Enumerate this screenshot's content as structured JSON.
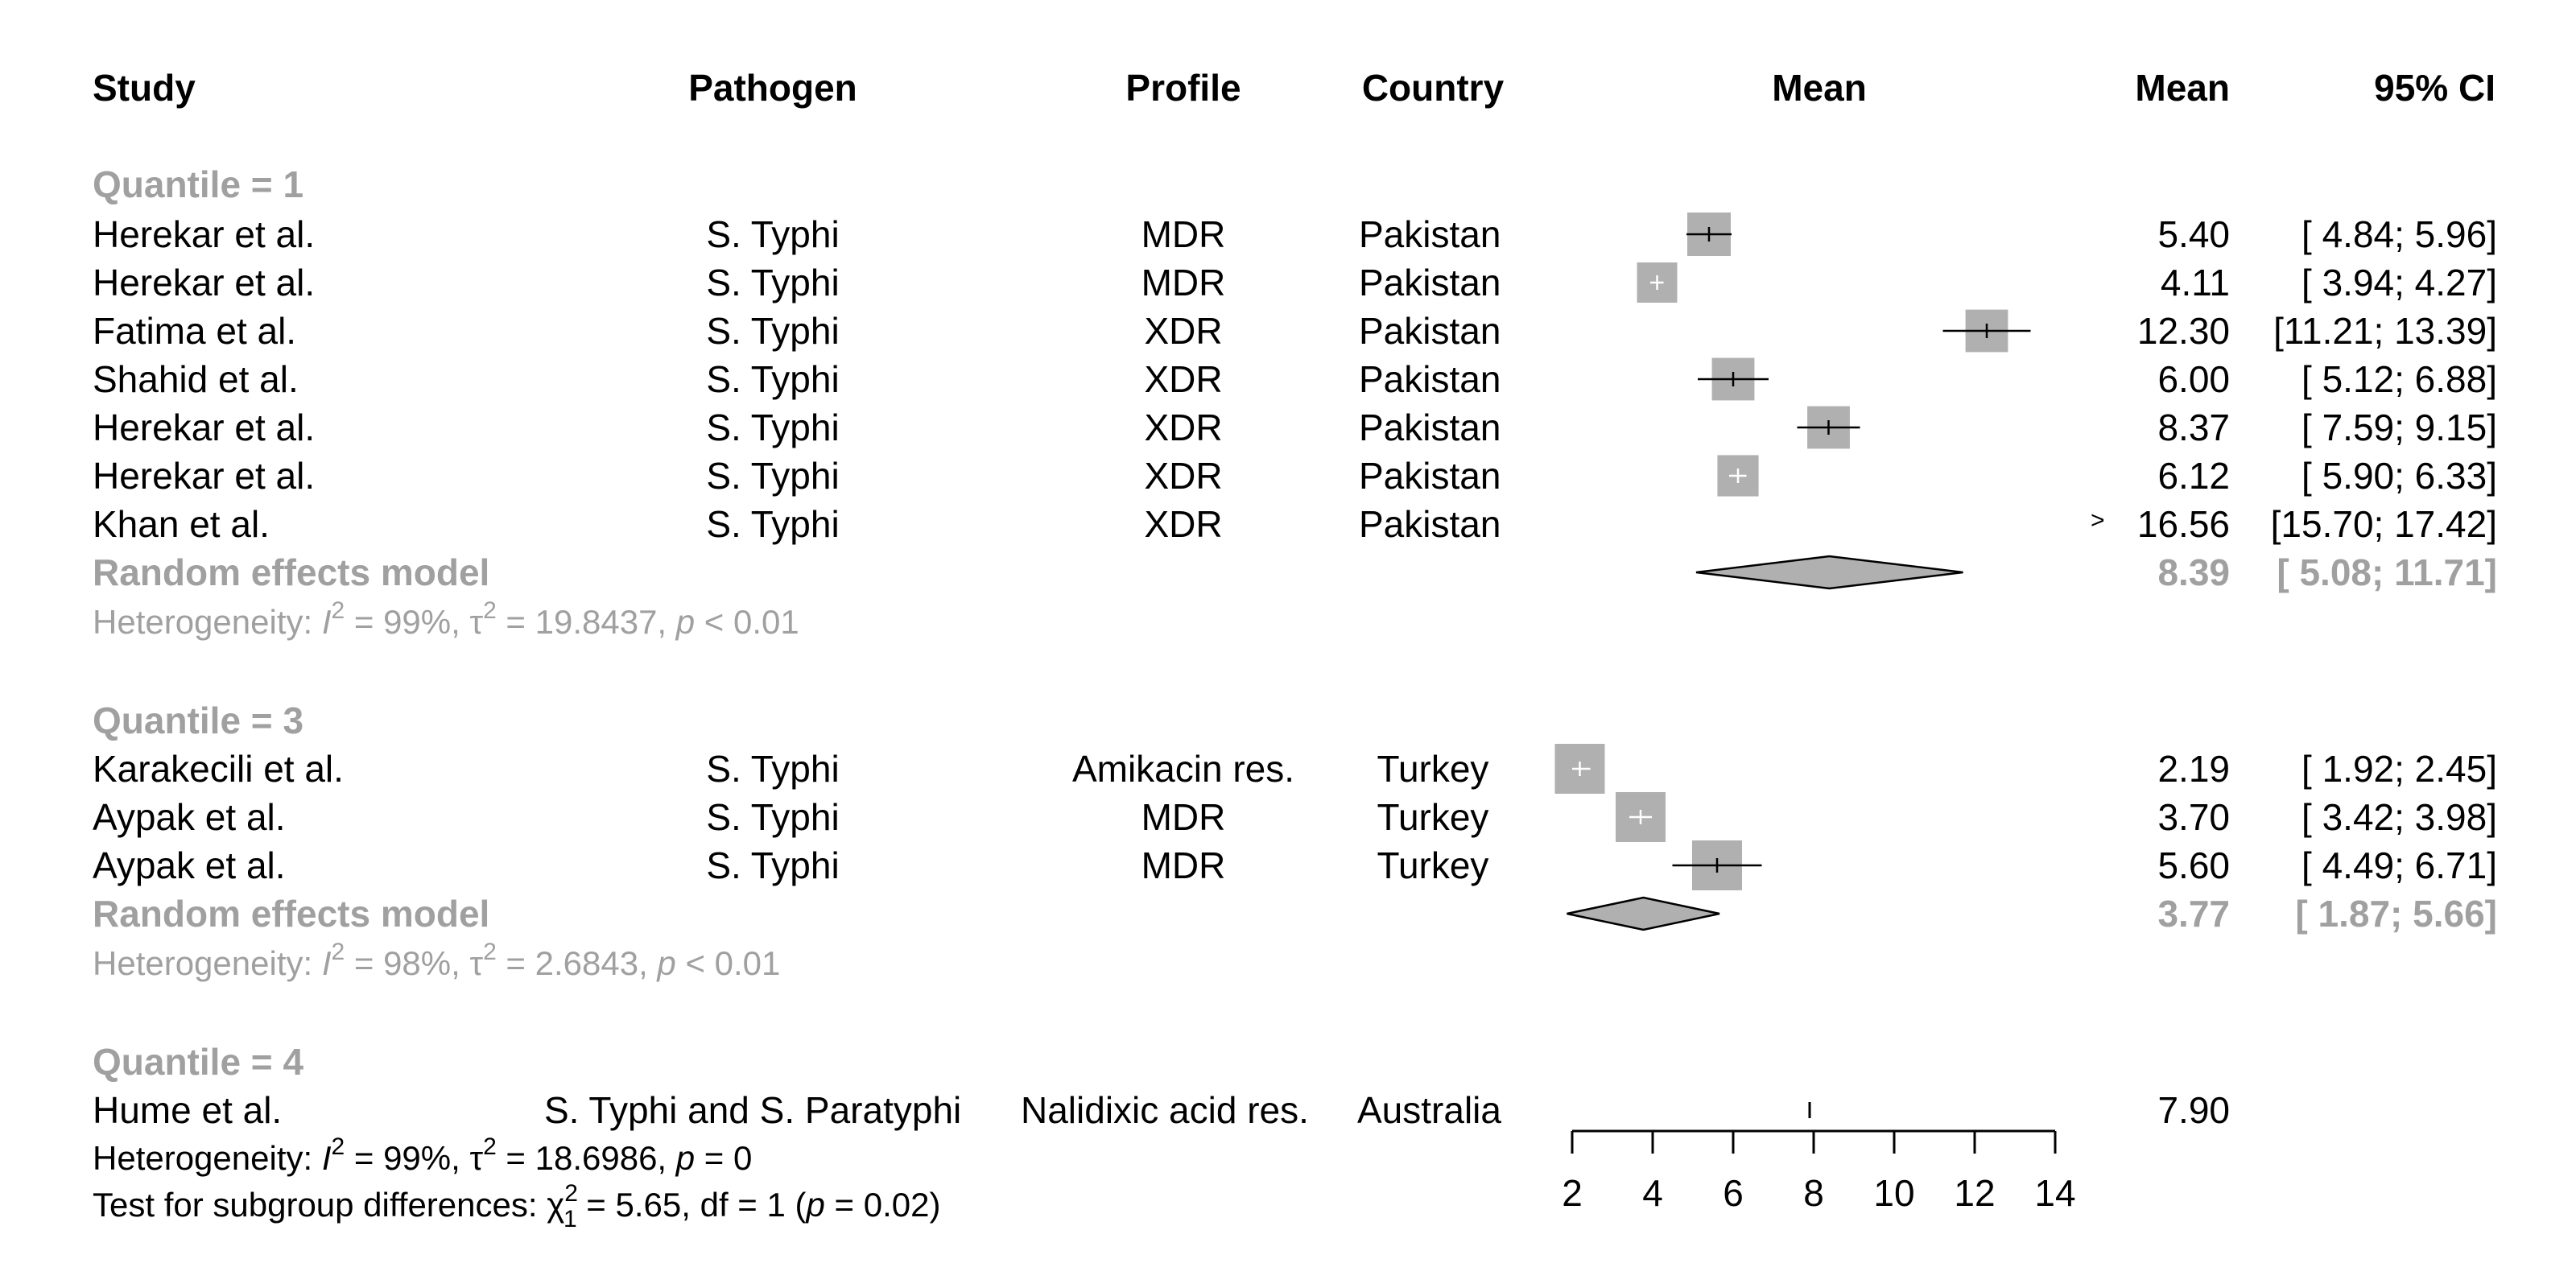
{
  "headers": {
    "study": "Study",
    "pathogen": "Pathogen",
    "profile": "Profile",
    "country": "Country",
    "plot": "Mean",
    "mean": "Mean",
    "ci": "95% CI"
  },
  "groups": [
    {
      "label": "Quantile = 1",
      "rows": [
        {
          "study": "Herekar et al.",
          "pathogen": "S. Typhi",
          "profile": "MDR",
          "country": "Pakistan",
          "mean_text": "5.40",
          "ci_text": "[ 4.84;  5.96]"
        },
        {
          "study": "Herekar et al.",
          "pathogen": "S. Typhi",
          "profile": "MDR",
          "country": "Pakistan",
          "mean_text": "4.11",
          "ci_text": "[ 3.94;  4.27]"
        },
        {
          "study": "Fatima et al.",
          "pathogen": "S. Typhi",
          "profile": "XDR",
          "country": "Pakistan",
          "mean_text": "12.30",
          "ci_text": "[11.21; 13.39]"
        },
        {
          "study": "Shahid et al.",
          "pathogen": "S. Typhi",
          "profile": "XDR",
          "country": "Pakistan",
          "mean_text": "6.00",
          "ci_text": "[ 5.12;  6.88]"
        },
        {
          "study": "Herekar et al.",
          "pathogen": "S. Typhi",
          "profile": "XDR",
          "country": "Pakistan",
          "mean_text": "8.37",
          "ci_text": "[ 7.59;  9.15]"
        },
        {
          "study": "Herekar et al.",
          "pathogen": "S. Typhi",
          "profile": "XDR",
          "country": "Pakistan",
          "mean_text": "6.12",
          "ci_text": "[ 5.90;  6.33]"
        },
        {
          "study": "Khan et al.",
          "pathogen": "S. Typhi",
          "profile": "XDR",
          "country": "Pakistan",
          "mean_text": "16.56",
          "ci_text": "[15.70; 17.42]"
        }
      ],
      "model_label": "Random effects model",
      "model_mean_text": "8.39",
      "model_ci_text": "[ 5.08; 11.71]",
      "het_prefix": "Heterogeneity: ",
      "het_i": "I",
      "het_i_sup": "2",
      "het_i_val": " = 99%, ",
      "het_tau": "τ",
      "het_tau_sup": "2",
      "het_tau_val": " = 19.8437, ",
      "het_p": "p",
      "het_p_val": " < 0.01"
    },
    {
      "label": "Quantile = 3",
      "rows": [
        {
          "study": "Karakecili et al.",
          "pathogen": "S. Typhi",
          "profile": "Amikacin res.",
          "country": "Turkey",
          "mean_text": "2.19",
          "ci_text": "[ 1.92;  2.45]"
        },
        {
          "study": "Aypak et al.",
          "pathogen": "S. Typhi",
          "profile": "MDR",
          "country": "Turkey",
          "mean_text": "3.70",
          "ci_text": "[ 3.42;  3.98]"
        },
        {
          "study": "Aypak et al.",
          "pathogen": "S. Typhi",
          "profile": "MDR",
          "country": "Turkey",
          "mean_text": "5.60",
          "ci_text": "[ 4.49;  6.71]"
        }
      ],
      "model_label": "Random effects model",
      "model_mean_text": "3.77",
      "model_ci_text": "[ 1.87;  5.66]",
      "het_prefix": "Heterogeneity: ",
      "het_i": "I",
      "het_i_sup": "2",
      "het_i_val": " = 98%, ",
      "het_tau": "τ",
      "het_tau_sup": "2",
      "het_tau_val": " = 2.6843, ",
      "het_p": "p",
      "het_p_val": " < 0.01"
    },
    {
      "label": "Quantile = 4",
      "rows": [
        {
          "study": "Hume et al.",
          "pathogen": "S. Typhi and S. Paratyphi",
          "profile": "Nalidixic acid res.",
          "country": "Australia",
          "mean_text": "7.90",
          "ci_text": ""
        }
      ]
    }
  ],
  "overall_het": {
    "prefix": "Heterogeneity: ",
    "i": "I",
    "i_sup": "2",
    "i_val": " = 99%, ",
    "tau": "τ",
    "tau_sup": "2",
    "tau_val": " = 18.6986, ",
    "p": "p",
    "p_val": " = 0"
  },
  "subgroup_test": {
    "prefix": "Test for subgroup differences: ",
    "chi": "χ",
    "chi_sup": "2",
    "chi_sub": "1",
    "mid": " = 5.65, df = 1 (",
    "p": "p",
    "end": " = 0.02)"
  },
  "arrow_marker": ">",
  "colors": {
    "square": "#b0b0b0",
    "diamond": "#b0b0b0",
    "group_text": "#a0a0a0",
    "line": "#000000"
  },
  "chart_data": {
    "type": "forest",
    "xlim": [
      2,
      14
    ],
    "xticks": [
      2,
      4,
      6,
      8,
      10,
      12,
      14
    ],
    "studies": [
      {
        "group": "Quantile = 1",
        "mean": 5.4,
        "lower": 4.84,
        "upper": 5.96,
        "weight": 0.65
      },
      {
        "group": "Quantile = 1",
        "mean": 4.11,
        "lower": 3.94,
        "upper": 4.27,
        "weight": 0.55
      },
      {
        "group": "Quantile = 1",
        "mean": 12.3,
        "lower": 11.21,
        "upper": 13.39,
        "weight": 0.62
      },
      {
        "group": "Quantile = 1",
        "mean": 6.0,
        "lower": 5.12,
        "upper": 6.88,
        "weight": 0.62
      },
      {
        "group": "Quantile = 1",
        "mean": 8.37,
        "lower": 7.59,
        "upper": 9.15,
        "weight": 0.62
      },
      {
        "group": "Quantile = 1",
        "mean": 6.12,
        "lower": 5.9,
        "upper": 6.33,
        "weight": 0.58
      },
      {
        "group": "Quantile = 1",
        "mean": 16.56,
        "lower": 15.7,
        "upper": 17.42,
        "weight": 0.6
      },
      {
        "group": "Quantile = 3",
        "mean": 2.19,
        "lower": 1.92,
        "upper": 2.45,
        "weight": 0.85
      },
      {
        "group": "Quantile = 3",
        "mean": 3.7,
        "lower": 3.42,
        "upper": 3.98,
        "weight": 0.85
      },
      {
        "group": "Quantile = 3",
        "mean": 5.6,
        "lower": 4.49,
        "upper": 6.71,
        "weight": 0.85
      },
      {
        "group": "Quantile = 4",
        "mean": 7.9,
        "lower": 7.9,
        "upper": 7.9,
        "weight": 0
      }
    ],
    "pooled": [
      {
        "group": "Quantile = 1",
        "mean": 8.39,
        "lower": 5.08,
        "upper": 11.71
      },
      {
        "group": "Quantile = 3",
        "mean": 3.77,
        "lower": 1.87,
        "upper": 5.66
      }
    ]
  }
}
